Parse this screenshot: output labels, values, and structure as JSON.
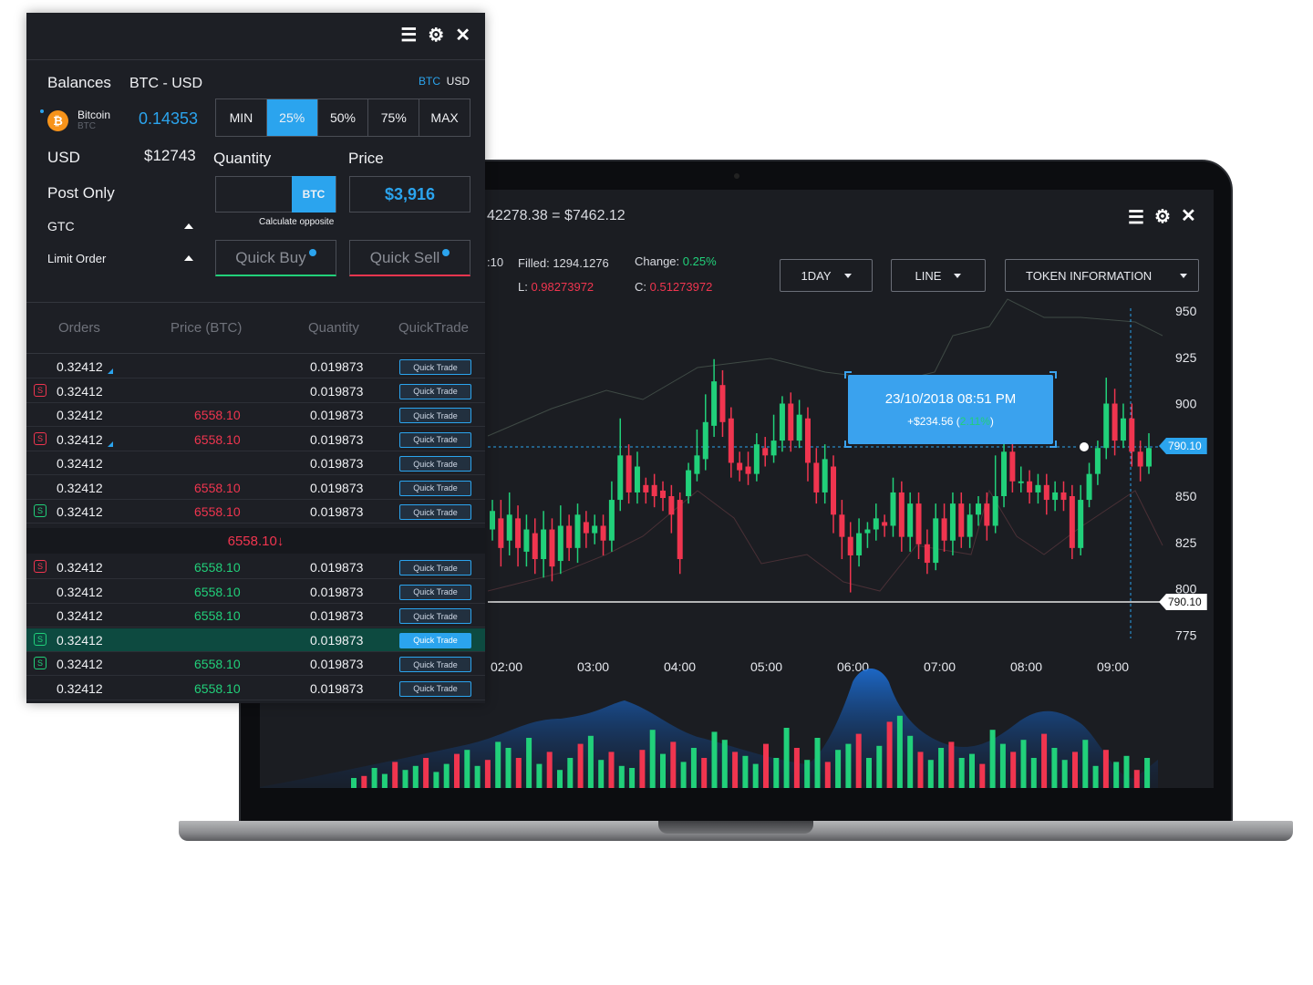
{
  "chart_window": {
    "header_text": "42278.38 = $7462.12",
    "stats": {
      "left_cut": ":10",
      "filled_label": "Filled:",
      "filled_value": "1294.1276",
      "low_label": "L:",
      "low_value": "0.98273972",
      "change_label": "Change:",
      "change_value": "0.25%",
      "close_label": "C:",
      "close_value": "0.51273972"
    },
    "dropdowns": [
      "1DAY",
      "LINE",
      "TOKEN INFORMATION"
    ],
    "icons": [
      "sliders-icon",
      "gear-icon",
      "close-icon"
    ],
    "tooltip": {
      "date": "23/10/2018 08:51 PM",
      "value": "+$234.56 (",
      "pct": "2.11%",
      "close": ")"
    },
    "price_tags": {
      "upper": "790.10",
      "lower": "790.10"
    },
    "colors": {
      "up": "#21d07a",
      "down": "#f0354f",
      "accent": "#2ba4ee"
    }
  },
  "chart_data": {
    "type": "candlestick",
    "y_ticks": [
      "950",
      "925",
      "900",
      "850",
      "825",
      "800",
      "775"
    ],
    "x_ticks": [
      "02:00",
      "03:00",
      "04:00",
      "05:00",
      "06:00",
      "07:00",
      "08:00",
      "09:00"
    ],
    "candles": [
      {
        "o": 832,
        "c": 842,
        "h": 848,
        "l": 826
      },
      {
        "o": 838,
        "c": 822,
        "h": 848,
        "l": 812
      },
      {
        "o": 826,
        "c": 840,
        "h": 852,
        "l": 818
      },
      {
        "o": 838,
        "c": 822,
        "h": 845,
        "l": 812
      },
      {
        "o": 820,
        "c": 832,
        "h": 840,
        "l": 812
      },
      {
        "o": 830,
        "c": 816,
        "h": 838,
        "l": 808
      },
      {
        "o": 816,
        "c": 832,
        "h": 842,
        "l": 806
      },
      {
        "o": 832,
        "c": 812,
        "h": 838,
        "l": 804
      },
      {
        "o": 815,
        "c": 834,
        "h": 845,
        "l": 808
      },
      {
        "o": 834,
        "c": 822,
        "h": 840,
        "l": 815
      },
      {
        "o": 822,
        "c": 840,
        "h": 846,
        "l": 814
      },
      {
        "o": 836,
        "c": 830,
        "h": 842,
        "l": 822
      },
      {
        "o": 830,
        "c": 834,
        "h": 840,
        "l": 824
      },
      {
        "o": 834,
        "c": 826,
        "h": 840,
        "l": 818
      },
      {
        "o": 826,
        "c": 848,
        "h": 858,
        "l": 820
      },
      {
        "o": 848,
        "c": 872,
        "h": 892,
        "l": 842
      },
      {
        "o": 872,
        "c": 852,
        "h": 878,
        "l": 846
      },
      {
        "o": 852,
        "c": 866,
        "h": 874,
        "l": 846
      },
      {
        "o": 856,
        "c": 852,
        "h": 860,
        "l": 846
      },
      {
        "o": 856,
        "c": 850,
        "h": 862,
        "l": 844
      },
      {
        "o": 853,
        "c": 849,
        "h": 858,
        "l": 842
      },
      {
        "o": 850,
        "c": 840,
        "h": 856,
        "l": 830
      },
      {
        "o": 848,
        "c": 816,
        "h": 852,
        "l": 808
      },
      {
        "o": 850,
        "c": 864,
        "h": 868,
        "l": 846
      },
      {
        "o": 862,
        "c": 872,
        "h": 886,
        "l": 858
      },
      {
        "o": 870,
        "c": 890,
        "h": 905,
        "l": 864
      },
      {
        "o": 888,
        "c": 912,
        "h": 924,
        "l": 882
      },
      {
        "o": 910,
        "c": 890,
        "h": 918,
        "l": 882
      },
      {
        "o": 892,
        "c": 868,
        "h": 898,
        "l": 860
      },
      {
        "o": 868,
        "c": 864,
        "h": 874,
        "l": 858
      },
      {
        "o": 866,
        "c": 862,
        "h": 874,
        "l": 856
      },
      {
        "o": 862,
        "c": 878,
        "h": 884,
        "l": 858
      },
      {
        "o": 876,
        "c": 872,
        "h": 882,
        "l": 866
      },
      {
        "o": 872,
        "c": 880,
        "h": 894,
        "l": 868
      },
      {
        "o": 880,
        "c": 900,
        "h": 904,
        "l": 874
      },
      {
        "o": 900,
        "c": 880,
        "h": 906,
        "l": 874
      },
      {
        "o": 880,
        "c": 894,
        "h": 902,
        "l": 876
      },
      {
        "o": 892,
        "c": 868,
        "h": 898,
        "l": 858
      },
      {
        "o": 868,
        "c": 852,
        "h": 876,
        "l": 846
      },
      {
        "o": 852,
        "c": 870,
        "h": 878,
        "l": 846
      },
      {
        "o": 866,
        "c": 840,
        "h": 872,
        "l": 830
      },
      {
        "o": 840,
        "c": 828,
        "h": 848,
        "l": 816
      },
      {
        "o": 828,
        "c": 818,
        "h": 836,
        "l": 798
      },
      {
        "o": 818,
        "c": 830,
        "h": 838,
        "l": 812
      },
      {
        "o": 830,
        "c": 832,
        "h": 836,
        "l": 822
      },
      {
        "o": 832,
        "c": 838,
        "h": 846,
        "l": 826
      },
      {
        "o": 836,
        "c": 834,
        "h": 840,
        "l": 828
      },
      {
        "o": 834,
        "c": 852,
        "h": 860,
        "l": 828
      },
      {
        "o": 852,
        "c": 828,
        "h": 858,
        "l": 820
      },
      {
        "o": 828,
        "c": 846,
        "h": 852,
        "l": 820
      },
      {
        "o": 846,
        "c": 824,
        "h": 852,
        "l": 816
      },
      {
        "o": 824,
        "c": 814,
        "h": 832,
        "l": 808
      },
      {
        "o": 814,
        "c": 838,
        "h": 846,
        "l": 810
      },
      {
        "o": 838,
        "c": 826,
        "h": 846,
        "l": 820
      },
      {
        "o": 826,
        "c": 846,
        "h": 852,
        "l": 818
      },
      {
        "o": 846,
        "c": 828,
        "h": 852,
        "l": 822
      },
      {
        "o": 828,
        "c": 840,
        "h": 846,
        "l": 822
      },
      {
        "o": 840,
        "c": 846,
        "h": 850,
        "l": 834
      },
      {
        "o": 846,
        "c": 834,
        "h": 852,
        "l": 826
      },
      {
        "o": 834,
        "c": 850,
        "h": 872,
        "l": 830
      },
      {
        "o": 850,
        "c": 874,
        "h": 880,
        "l": 844
      },
      {
        "o": 874,
        "c": 858,
        "h": 880,
        "l": 852
      },
      {
        "o": 858,
        "c": 858,
        "h": 866,
        "l": 852
      },
      {
        "o": 858,
        "c": 852,
        "h": 864,
        "l": 846
      },
      {
        "o": 852,
        "c": 856,
        "h": 862,
        "l": 846
      },
      {
        "o": 856,
        "c": 848,
        "h": 862,
        "l": 840
      },
      {
        "o": 848,
        "c": 852,
        "h": 858,
        "l": 842
      },
      {
        "o": 852,
        "c": 848,
        "h": 858,
        "l": 842
      },
      {
        "o": 850,
        "c": 822,
        "h": 856,
        "l": 816
      },
      {
        "o": 822,
        "c": 848,
        "h": 856,
        "l": 818
      },
      {
        "o": 848,
        "c": 862,
        "h": 868,
        "l": 844
      },
      {
        "o": 862,
        "c": 876,
        "h": 880,
        "l": 856
      },
      {
        "o": 876,
        "c": 900,
        "h": 914,
        "l": 870
      },
      {
        "o": 900,
        "c": 880,
        "h": 908,
        "l": 872
      },
      {
        "o": 880,
        "c": 892,
        "h": 900,
        "l": 876
      },
      {
        "o": 892,
        "c": 874,
        "h": 900,
        "l": 866
      },
      {
        "o": 874,
        "c": 866,
        "h": 880,
        "l": 858
      },
      {
        "o": 866,
        "c": 876,
        "h": 884,
        "l": 862
      }
    ],
    "volume": [
      10,
      12,
      20,
      14,
      26,
      18,
      22,
      30,
      16,
      24,
      34,
      38,
      22,
      28,
      46,
      40,
      30,
      50,
      24,
      36,
      18,
      30,
      44,
      52,
      28,
      36,
      22,
      20,
      38,
      58,
      34,
      46,
      26,
      40,
      30,
      56,
      48,
      36,
      32,
      24,
      44,
      30,
      60,
      40,
      28,
      50,
      26,
      38,
      44,
      54,
      30,
      42,
      66,
      72,
      52,
      36,
      28,
      40,
      46,
      30,
      34,
      24,
      58,
      44,
      36,
      48,
      30,
      54,
      40,
      28,
      36,
      48,
      22,
      38,
      26,
      32,
      18,
      30
    ],
    "volume_colors": "alternating green/red per candle"
  },
  "order_panel": {
    "icons": [
      "sliders-icon",
      "gear-icon",
      "close-icon"
    ],
    "balances_label": "Balances",
    "pair": "BTC - USD",
    "currency_toggle": {
      "btc": "BTC",
      "usd": "USD"
    },
    "coin_name": "Bitcoin",
    "coin_ticker": "BTC",
    "coin_balance": "0.14353",
    "usd_label": "USD",
    "usd_value": "$12743",
    "post_only": "Post Only",
    "gtc": "GTC",
    "limit_order": "Limit Order",
    "pct_buttons": [
      "MIN",
      "25%",
      "50%",
      "75%",
      "MAX"
    ],
    "active_pct": "25%",
    "quantity_label": "Quantity",
    "price_label": "Price",
    "quantity_unit": "BTC",
    "price_value": "$3,916",
    "calc_opposite": "Calculate opposite",
    "quick_buy": "Quick Buy",
    "quick_sell": "Quick Sell",
    "columns": [
      "Orders",
      "Price (BTC)",
      "Quantity",
      "QuickTrade"
    ],
    "rows_top": [
      {
        "order": "0.32412",
        "price": "",
        "qty": "0.019873",
        "btn": "Quick Trade",
        "badge": "",
        "mark": true
      },
      {
        "order": "0.32412",
        "price": "",
        "qty": "0.019873",
        "btn": "Quick Trade",
        "badge": "S-red",
        "mark": false
      },
      {
        "order": "0.32412",
        "price": "6558.10",
        "qty": "0.019873",
        "btn": "Quick Trade",
        "badge": "",
        "mark": false
      },
      {
        "order": "0.32412",
        "price": "6558.10",
        "qty": "0.019873",
        "btn": "Quick Trade",
        "badge": "S-red",
        "mark": true
      },
      {
        "order": "0.32412",
        "price": "",
        "qty": "0.019873",
        "btn": "Quick Trade",
        "badge": "",
        "mark": false
      },
      {
        "order": "0.32412",
        "price": "6558.10",
        "qty": "0.019873",
        "btn": "Quick Trade",
        "badge": "",
        "mark": false
      },
      {
        "order": "0.32412",
        "price": "6558.10",
        "qty": "0.019873",
        "btn": "Quick Trade",
        "badge": "S-green",
        "mark": false
      }
    ],
    "mid_price": "6558.10",
    "mid_arrow": "↓",
    "rows_bottom": [
      {
        "order": "0.32412",
        "price": "6558.10",
        "qty": "0.019873",
        "btn": "Quick Trade",
        "badge": "S-red",
        "hl": false
      },
      {
        "order": "0.32412",
        "price": "6558.10",
        "qty": "0.019873",
        "btn": "Quick Trade",
        "badge": "",
        "hl": false
      },
      {
        "order": "0.32412",
        "price": "6558.10",
        "qty": "0.019873",
        "btn": "Quick Trade",
        "badge": "",
        "hl": false
      },
      {
        "order": "0.32412",
        "price": "",
        "qty": "0.019873",
        "btn": "Quick Trade",
        "badge": "S-green",
        "hl": true
      },
      {
        "order": "0.32412",
        "price": "6558.10",
        "qty": "0.019873",
        "btn": "Quick Trade",
        "badge": "S-green",
        "hl": false
      },
      {
        "order": "0.32412",
        "price": "6558.10",
        "qty": "0.019873",
        "btn": "Quick Trade",
        "badge": "",
        "hl": false
      }
    ],
    "badge_letter": "S"
  }
}
